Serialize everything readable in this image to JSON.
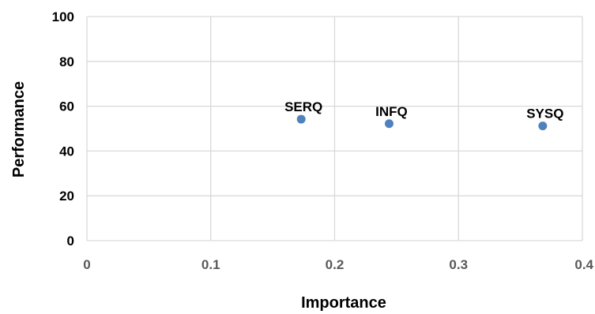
{
  "chart_data": {
    "type": "scatter",
    "title": "",
    "xlabel": "Importance",
    "ylabel": "Performance",
    "xlim": [
      0,
      0.4
    ],
    "ylim": [
      0,
      100
    ],
    "x_ticks": [
      0,
      0.1,
      0.2,
      0.3,
      0.4
    ],
    "x_tick_labels": [
      "0",
      "0.1",
      "0.2",
      "0.3",
      "0.4"
    ],
    "y_ticks": [
      0,
      20,
      40,
      60,
      80,
      100
    ],
    "y_tick_labels": [
      "0",
      "20",
      "40",
      "60",
      "80",
      "100"
    ],
    "grid": true,
    "legend": "none",
    "colors": {
      "point": "#4f81bd",
      "grid": "#d9d9d9",
      "text": "#000000",
      "tick_text": "#595959"
    },
    "points": [
      {
        "label": "SERQ",
        "x": 0.173,
        "y": 54.2
      },
      {
        "label": "INFQ",
        "x": 0.244,
        "y": 52.2
      },
      {
        "label": "SYSQ",
        "x": 0.368,
        "y": 51.2
      }
    ]
  }
}
